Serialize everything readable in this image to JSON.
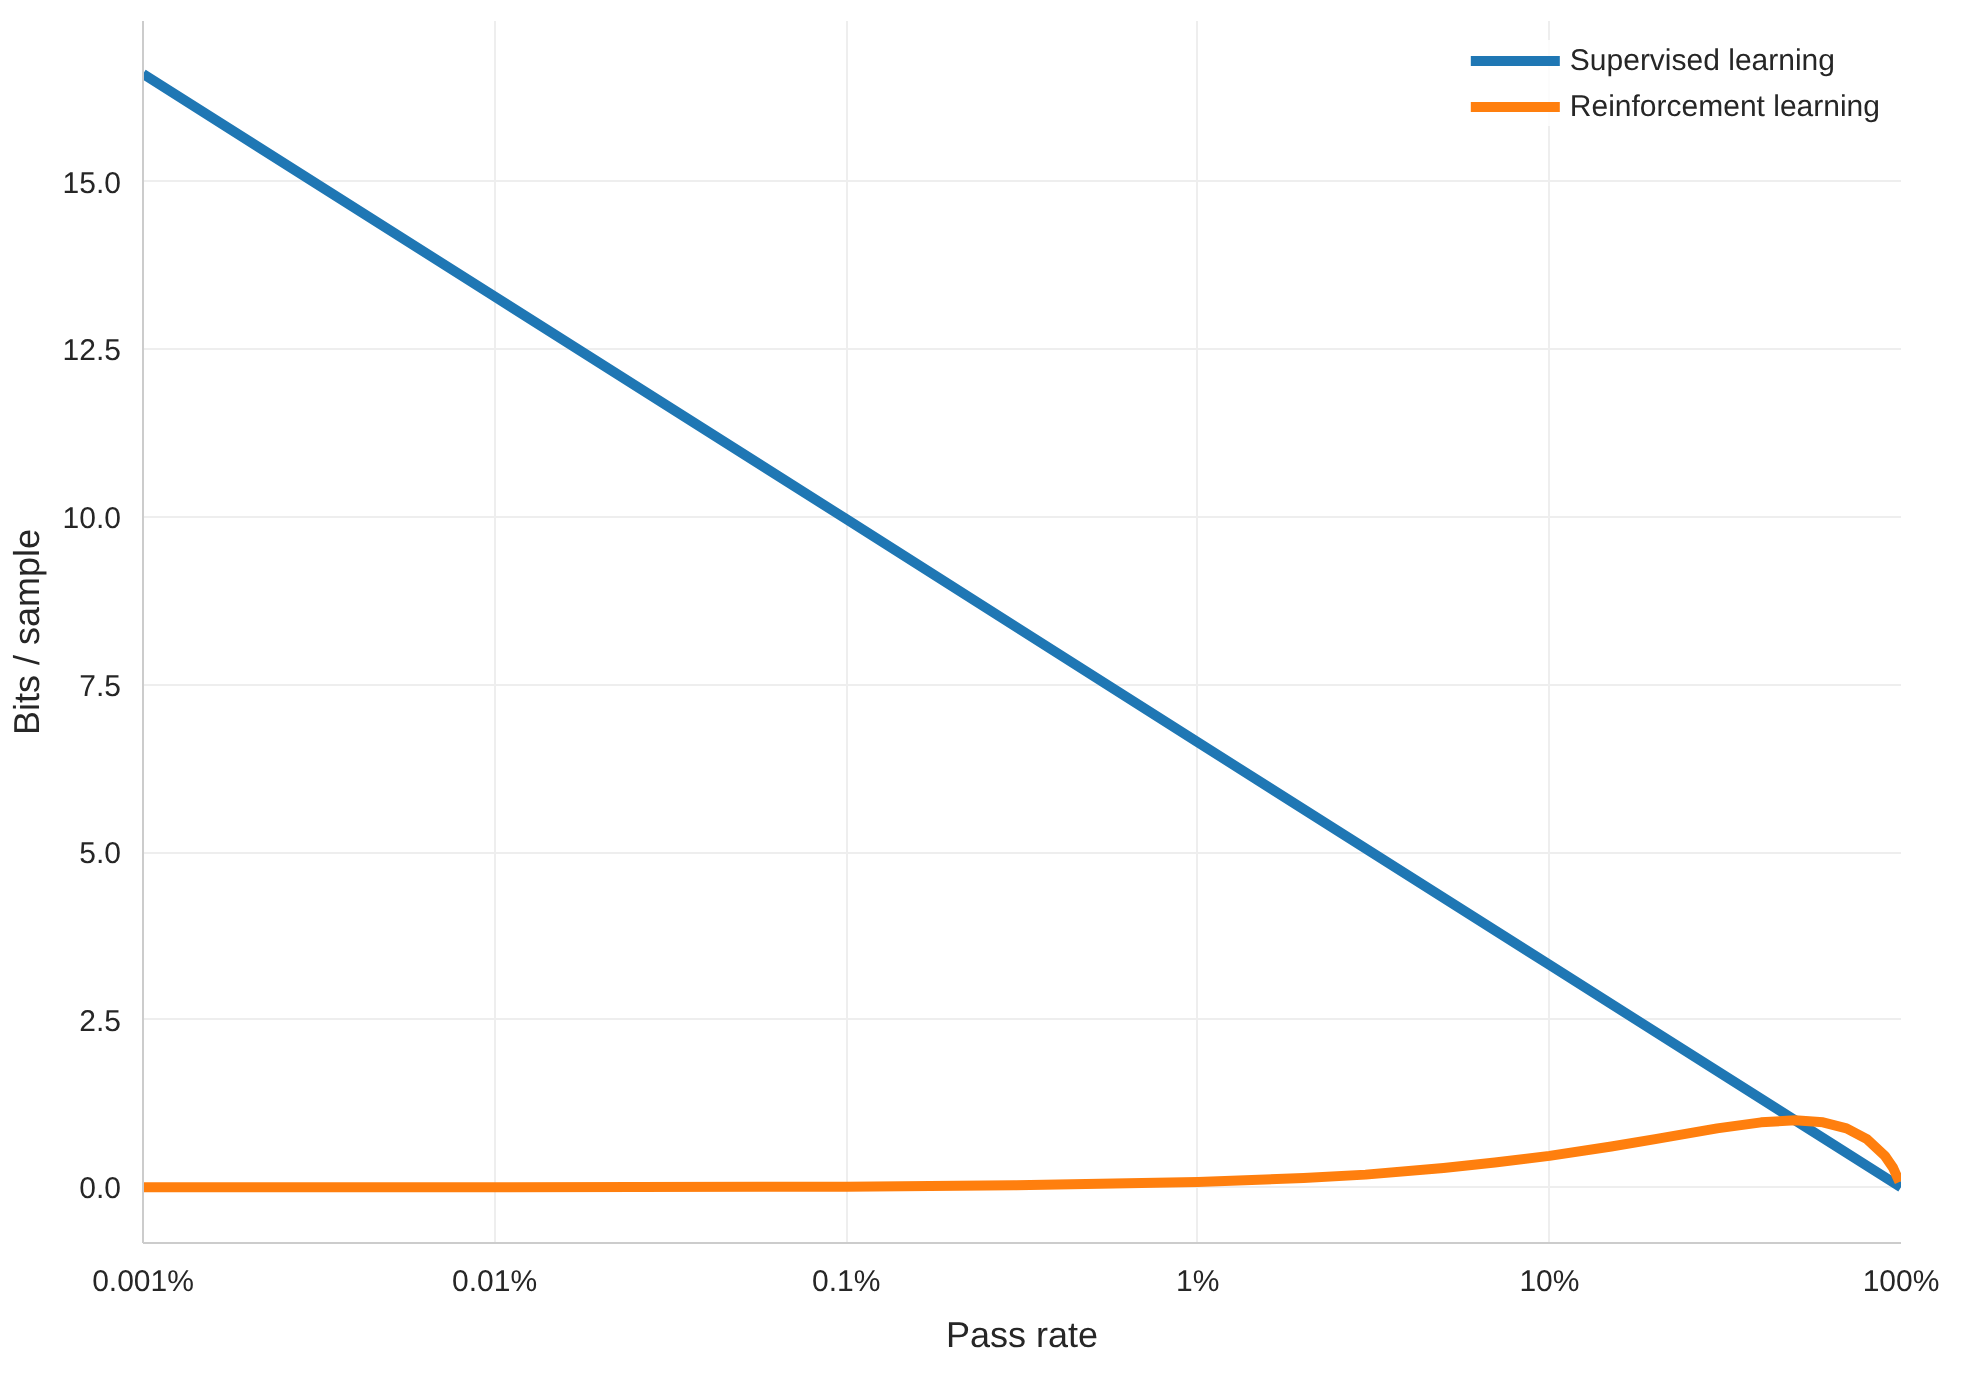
{
  "chart_data": {
    "type": "line",
    "xlabel": "Pass rate",
    "ylabel": "Bits / sample",
    "log": "x",
    "xlim": [
      1e-05,
      1
    ],
    "ylim": [
      -0.83,
      17.4
    ],
    "xticks": [
      {
        "value": 1e-05,
        "label": "0.001%"
      },
      {
        "value": 0.0001,
        "label": "0.01%"
      },
      {
        "value": 0.001,
        "label": "0.1%"
      },
      {
        "value": 0.01,
        "label": "1%"
      },
      {
        "value": 0.1,
        "label": "10%"
      },
      {
        "value": 1,
        "label": "100%"
      }
    ],
    "yticks": [
      {
        "value": 0,
        "label": "0.0"
      },
      {
        "value": 2.5,
        "label": "2.5"
      },
      {
        "value": 5,
        "label": "5.0"
      },
      {
        "value": 7.5,
        "label": "7.5"
      },
      {
        "value": 10,
        "label": "10.0"
      },
      {
        "value": 12.5,
        "label": "12.5"
      },
      {
        "value": 15,
        "label": "15.0"
      }
    ],
    "grid": true,
    "legend": "top right",
    "line_style": "solid",
    "marker": "none",
    "series": [
      {
        "name": "Supervised learning",
        "color": "#1f77b4",
        "x": [
          1e-05,
          0.0001,
          0.001,
          0.01,
          0.1,
          1
        ],
        "values": [
          16.61,
          13.29,
          9.97,
          6.64,
          3.32,
          0
        ]
      },
      {
        "name": "Reinforcement learning",
        "color": "#ff7f0e",
        "x": [
          1e-05,
          0.0001,
          0.001,
          0.003,
          0.01,
          0.02,
          0.03,
          0.05,
          0.07,
          0.1,
          0.15,
          0.2,
          0.3,
          0.4,
          0.5,
          0.6,
          0.7,
          0.8,
          0.9,
          0.95,
          0.99
        ],
        "values": [
          0.0,
          0.0,
          0.01,
          0.03,
          0.08,
          0.14,
          0.19,
          0.29,
          0.37,
          0.47,
          0.61,
          0.72,
          0.88,
          0.97,
          1.0,
          0.97,
          0.88,
          0.72,
          0.47,
          0.29,
          0.08
        ]
      }
    ]
  }
}
